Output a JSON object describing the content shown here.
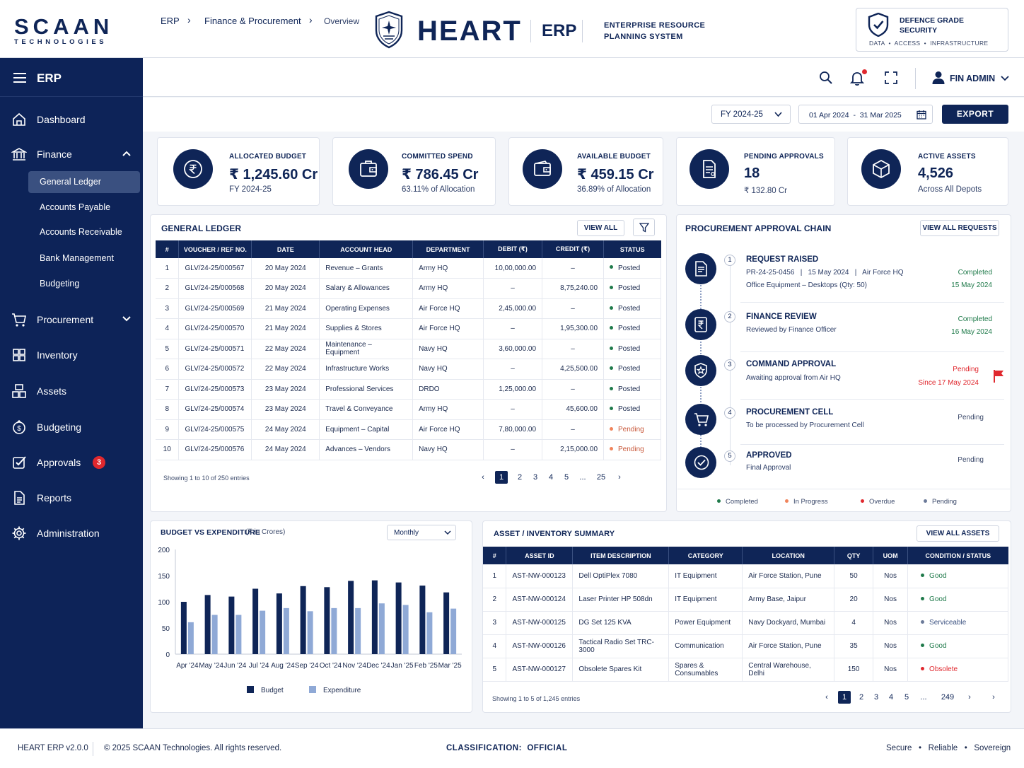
{
  "header": {
    "company_top": "SCAAN",
    "company_bottom": "TECHNOLOGIES",
    "product": "HEART",
    "erp": "ERP",
    "subtitle_line1": "ENTERPRISE RESOURCE",
    "subtitle_line2": "PLANNING SYSTEM",
    "security_line1": "DEFENCE GRADE",
    "security_line2": "SECURITY",
    "security_tags": "DATA  •  ACCESS  •  INFRASTRUCTURE"
  },
  "sidebar": {
    "title": "ERP",
    "items": [
      {
        "label": "Dashboard",
        "icon": "home-icon"
      },
      {
        "label": "Finance",
        "icon": "bank-icon"
      },
      {
        "label": "Procurement",
        "icon": "cart-icon"
      },
      {
        "label": "Inventory",
        "icon": "boxes-icon"
      },
      {
        "label": "Assets",
        "icon": "assets-icon"
      },
      {
        "label": "Budgeting",
        "icon": "budget-icon"
      },
      {
        "label": "Approvals",
        "icon": "approval-icon",
        "badge": "3"
      },
      {
        "label": "Reports",
        "icon": "report-icon"
      },
      {
        "label": "Administration",
        "icon": "settings-icon"
      }
    ],
    "finance_sub": [
      "General Ledger",
      "Accounts Payable",
      "Accounts Receivable",
      "Bank Management",
      "Budgeting"
    ],
    "active_sub": "General Ledger"
  },
  "breadcrumb": [
    "ERP",
    "Finance & Procurement",
    "Overview"
  ],
  "user": {
    "name": "FIN ADMIN"
  },
  "filters": {
    "fy": "FY 2024-25",
    "date_from": "01 Apr 2024",
    "date_to": "31 Mar 2025",
    "date_display": "01 Apr 2024  -  31 Mar 2025",
    "export": "EXPORT"
  },
  "kpis": [
    {
      "label": "ALLOCATED BUDGET",
      "value": "₹ 1,245.60 Cr",
      "sub": "FY 2024-25"
    },
    {
      "label": "COMMITTED SPEND",
      "value": "₹ 786.45 Cr",
      "sub": "63.11% of Allocation"
    },
    {
      "label": "AVAILABLE BUDGET",
      "value": "₹ 459.15 Cr",
      "sub": "36.89% of Allocation"
    },
    {
      "label": "PENDING APPROVALS",
      "value": "18",
      "sub": "₹ 132.80 Cr"
    },
    {
      "label": "ACTIVE ASSETS",
      "value": "4,526",
      "sub": "Across All Depots"
    }
  ],
  "ledger": {
    "title": "GENERAL LEDGER",
    "view_all": "VIEW ALL",
    "columns": [
      "#",
      "VOUCHER / REF NO.",
      "DATE",
      "ACCOUNT HEAD",
      "DEPARTMENT",
      "DEBIT (₹)",
      "CREDIT (₹)",
      "STATUS"
    ],
    "rows": [
      [
        "1",
        "GLV/24-25/000567",
        "20 May 2024",
        "Revenue – Grants",
        "Army HQ",
        "10,00,000.00",
        "–",
        "Posted"
      ],
      [
        "2",
        "GLV/24-25/000568",
        "20 May 2024",
        "Salary & Allowances",
        "Army HQ",
        "–",
        "8,75,240.00",
        "Posted"
      ],
      [
        "3",
        "GLV/24-25/000569",
        "21 May 2024",
        "Operating Expenses",
        "Air Force HQ",
        "2,45,000.00",
        "–",
        "Posted"
      ],
      [
        "4",
        "GLV/24-25/000570",
        "21 May 2024",
        "Supplies & Stores",
        "Air Force HQ",
        "–",
        "1,95,300.00",
        "Posted"
      ],
      [
        "5",
        "GLV/24-25/000571",
        "22 May 2024",
        "Maintenance – Equipment",
        "Navy HQ",
        "3,60,000.00",
        "–",
        "Posted"
      ],
      [
        "6",
        "GLV/24-25/000572",
        "22 May 2024",
        "Infrastructure Works",
        "Navy HQ",
        "–",
        "4,25,500.00",
        "Posted"
      ],
      [
        "7",
        "GLV/24-25/000573",
        "23 May 2024",
        "Professional Services",
        "DRDO",
        "1,25,000.00",
        "–",
        "Posted"
      ],
      [
        "8",
        "GLV/24-25/000574",
        "23 May 2024",
        "Travel & Conveyance",
        "Army HQ",
        "–",
        "45,600.00",
        "Posted"
      ],
      [
        "9",
        "GLV/24-25/000575",
        "24 May 2024",
        "Equipment – Capital",
        "Air Force HQ",
        "7,80,000.00",
        "–",
        "Pending"
      ],
      [
        "10",
        "GLV/24-25/000576",
        "24 May 2024",
        "Advances – Vendors",
        "Navy HQ",
        "–",
        "2,15,000.00",
        "Pending"
      ]
    ],
    "showing": "Showing 1 to 10 of 250 entries",
    "pages": [
      "1",
      "2",
      "3",
      "4",
      "5",
      "...",
      "25"
    ]
  },
  "approval": {
    "title": "PROCUREMENT APPROVAL CHAIN",
    "view_all": "VIEW ALL REQUESTS",
    "steps": [
      {
        "num": "1",
        "title": "REQUEST RAISED",
        "desc1": "PR-24-25-0456   |   15 May 2024   |   Air Force HQ",
        "desc2": "Office Equipment – Desktops (Qty: 50)",
        "status": "Completed",
        "date": "15 May 2024"
      },
      {
        "num": "2",
        "title": "FINANCE REVIEW",
        "desc1": "Reviewed by Finance Officer",
        "desc2": "",
        "status": "Completed",
        "date": "16 May 2024"
      },
      {
        "num": "3",
        "title": "COMMAND APPROVAL",
        "desc1": "Awaiting approval from Air HQ",
        "desc2": "",
        "status": "Pending",
        "date": "Since 17 May 2024"
      },
      {
        "num": "4",
        "title": "PROCUREMENT CELL",
        "desc1": "To be processed by Procurement Cell",
        "desc2": "",
        "status": "Pending",
        "date": ""
      },
      {
        "num": "5",
        "title": "APPROVED",
        "desc1": "Final Approval",
        "desc2": "",
        "status": "Pending",
        "date": ""
      }
    ],
    "legend": [
      "Completed",
      "In Progress",
      "Overdue",
      "Pending"
    ],
    "legend_colors": [
      "#1f7a4a",
      "#f0845c",
      "#e0282e",
      "#6b7a99"
    ]
  },
  "chart_panel": {
    "title": "BUDGET VS EXPENDITURE",
    "unit": "(₹ in Crores)",
    "period": "Monthly"
  },
  "chart_data": {
    "type": "bar",
    "categories": [
      "Apr '24",
      "May '24",
      "Jun '24",
      "Jul '24",
      "Aug '24",
      "Sep '24",
      "Oct '24",
      "Nov '24",
      "Dec '24",
      "Jan '25",
      "Feb '25",
      "Mar '25"
    ],
    "series": [
      {
        "name": "Budget",
        "color": "#0f2557",
        "values": [
          100,
          113,
          110,
          125,
          116,
          130,
          128,
          140,
          141,
          137,
          131,
          118
        ]
      },
      {
        "name": "Expenditure",
        "color": "#8fa9d6",
        "values": [
          61,
          75,
          75,
          83,
          88,
          82,
          88,
          88,
          97,
          94,
          80,
          87
        ]
      }
    ],
    "yticks": [
      0,
      50,
      100,
      150,
      200
    ],
    "ylim": [
      0,
      200
    ],
    "legend": "bottom",
    "grid": false
  },
  "assets": {
    "title": "ASSET / INVENTORY SUMMARY",
    "view_all": "VIEW ALL ASSETS",
    "columns": [
      "#",
      "ASSET ID",
      "ITEM DESCRIPTION",
      "CATEGORY",
      "LOCATION",
      "QTY",
      "UOM",
      "CONDITION / STATUS"
    ],
    "rows": [
      [
        "1",
        "AST-NW-000123",
        "Dell OptiPlex 7080",
        "IT Equipment",
        "Air Force Station, Pune",
        "50",
        "Nos",
        "Good"
      ],
      [
        "2",
        "AST-NW-000124",
        "Laser Printer HP 508dn",
        "IT Equipment",
        "Army Base, Jaipur",
        "20",
        "Nos",
        "Good"
      ],
      [
        "3",
        "AST-NW-000125",
        "DG Set 125 KVA",
        "Power Equipment",
        "Navy Dockyard, Mumbai",
        "4",
        "Nos",
        "Serviceable"
      ],
      [
        "4",
        "AST-NW-000126",
        "Tactical Radio Set TRC-3000",
        "Communication",
        "Air Force Station, Pune",
        "35",
        "Nos",
        "Good"
      ],
      [
        "5",
        "AST-NW-000127",
        "Obsolete Spares Kit",
        "Spares & Consumables",
        "Central Warehouse, Delhi",
        "150",
        "Nos",
        "Obsolete"
      ]
    ],
    "showing": "Showing 1 to 5 of 1,245 entries",
    "pages": [
      "1",
      "2",
      "3",
      "4",
      "5",
      "...",
      "249"
    ]
  },
  "footer": {
    "version": "HEART ERP v2.0.0",
    "copyright": "© 2025 SCAAN Technologies. All rights reserved.",
    "classification": "CLASSIFICATION:  OFFICIAL",
    "tags": "Secure   •   Reliable   •   Sovereign"
  }
}
